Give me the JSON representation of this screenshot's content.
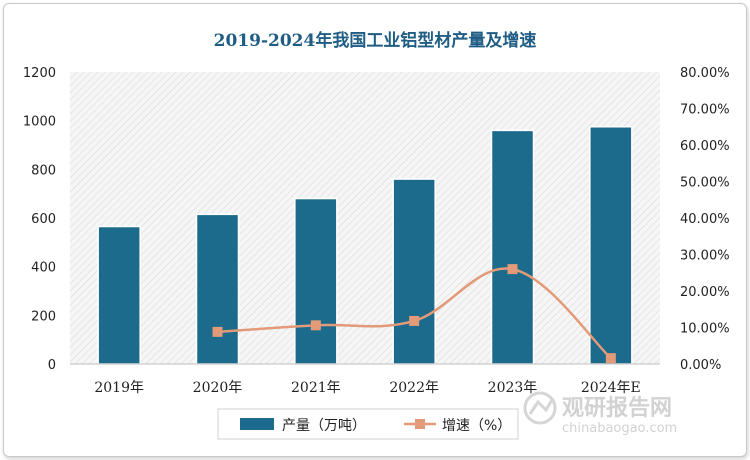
{
  "chart_data": {
    "type": "bar",
    "title": "2019-2024年我国工业铝型材产量及增速",
    "categories": [
      "2019年",
      "2020年",
      "2021年",
      "2022年",
      "2023年",
      "2024年E"
    ],
    "series": [
      {
        "name": "产量（万吨）",
        "type": "bar",
        "axis": "left",
        "values": [
          565,
          615,
          680,
          760,
          960,
          975
        ]
      },
      {
        "name": "增速（%）",
        "type": "line",
        "axis": "right",
        "values": [
          null,
          8.8,
          10.6,
          11.8,
          26.0,
          1.6
        ]
      }
    ],
    "left_axis": {
      "ylim": [
        0,
        1200
      ],
      "ticks": [
        "0",
        "200",
        "400",
        "600",
        "800",
        "1000",
        "1200"
      ]
    },
    "right_axis": {
      "ylim": [
        0,
        80
      ],
      "ticks": [
        "0.00%",
        "10.00%",
        "20.00%",
        "30.00%",
        "40.00%",
        "50.00%",
        "60.00%",
        "70.00%",
        "80.00%"
      ]
    },
    "legend": "bottom",
    "colors": {
      "bar": "#1c6a8c",
      "line": "#e39a78",
      "title": "#1f5d85"
    }
  },
  "watermark": {
    "name": "观研报告网",
    "url": "chinabaogao.com"
  }
}
